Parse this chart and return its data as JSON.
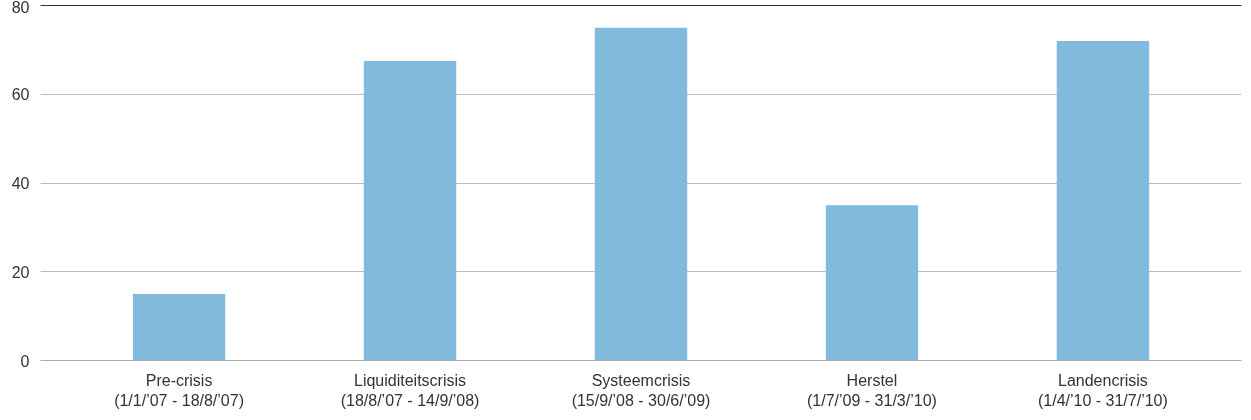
{
  "chart_data": {
    "type": "bar",
    "categories": [
      "Pre-crisis\n(1/1/’07 - 18/8/’07)",
      "Liquiditeitscrisis\n(18/8/’07 - 14/9/’08)",
      "Systeemcrisis\n(15/9/’08 - 30/6/’09)",
      "Herstel\n(1/7/’09 - 31/3/’10)",
      "Landencrisis\n(1/4/’10 - 31/7/’10)"
    ],
    "values": [
      15,
      67.5,
      75,
      35,
      72
    ],
    "color": "#82badd",
    "ylim": [
      0,
      80
    ],
    "yticks": [
      0,
      20,
      40,
      60,
      80
    ],
    "grid": "y"
  }
}
